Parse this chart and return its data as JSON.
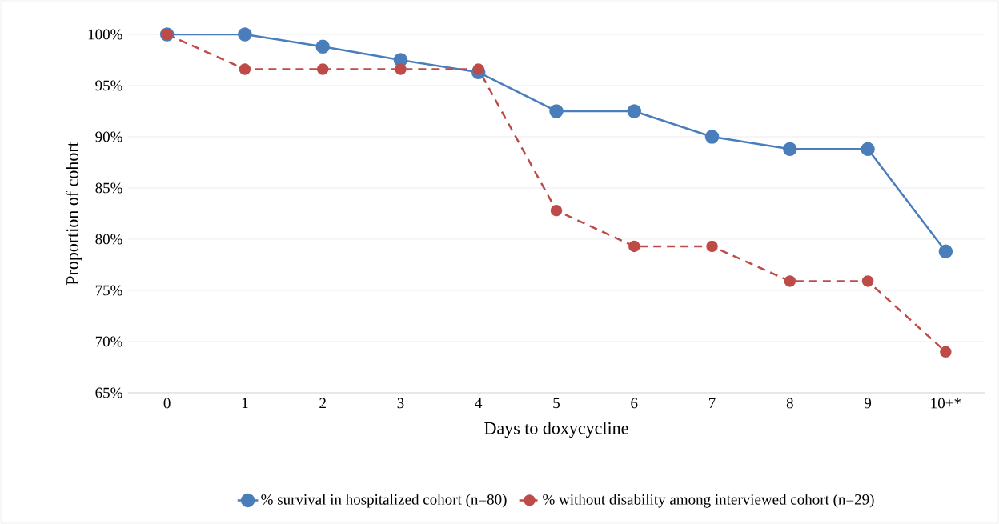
{
  "chart_data": {
    "type": "line",
    "xlabel": "Days to doxycycline",
    "ylabel": "Proportion of cohort",
    "categories": [
      "0",
      "1",
      "2",
      "3",
      "4",
      "5",
      "6",
      "7",
      "8",
      "9",
      "10+*"
    ],
    "series": [
      {
        "name": "% survival in hospitalized cohort (n=80)",
        "color": "#4a7ebb",
        "line_style": "solid",
        "values": [
          100,
          100,
          98.8,
          97.5,
          96.3,
          92.5,
          92.5,
          90,
          88.8,
          88.8,
          78.8
        ]
      },
      {
        "name": "% without disability among interviewed cohort (n=29)",
        "color": "#be4b48",
        "line_style": "dashed",
        "values": [
          100,
          96.6,
          96.6,
          96.6,
          96.6,
          82.8,
          79.3,
          79.3,
          75.9,
          75.9,
          69.0
        ]
      }
    ],
    "ylim": [
      65,
      100
    ],
    "yticks": [
      {
        "value": 65,
        "label": "65%"
      },
      {
        "value": 70,
        "label": "70%"
      },
      {
        "value": 75,
        "label": "75%"
      },
      {
        "value": 80,
        "label": "80%"
      },
      {
        "value": 85,
        "label": "85%"
      },
      {
        "value": 90,
        "label": "90%"
      },
      {
        "value": 95,
        "label": "95%"
      },
      {
        "value": 100,
        "label": "100%"
      }
    ],
    "grid": "y",
    "legend": "bottom",
    "marker": "circle"
  }
}
